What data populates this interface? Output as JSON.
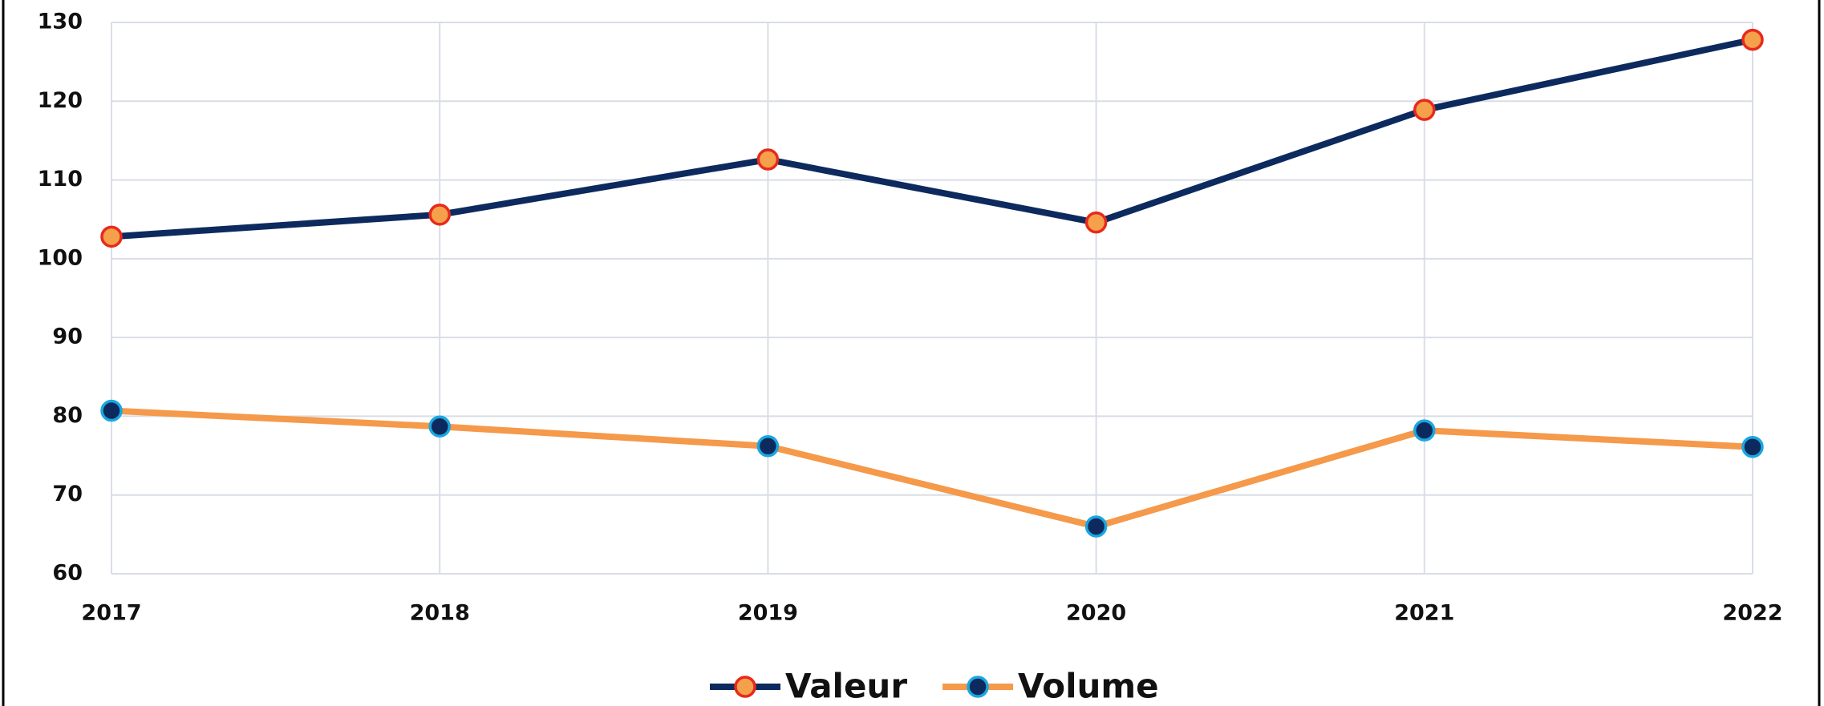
{
  "chart_data": {
    "type": "line",
    "categories": [
      "2017",
      "2018",
      "2019",
      "2020",
      "2021",
      "2022"
    ],
    "series": [
      {
        "name": "Valeur",
        "color": "#0d2a5e",
        "marker_fill": "#f5a04a",
        "marker_edge": "#e8291c",
        "values": [
          102.8,
          105.6,
          112.6,
          104.6,
          118.9,
          127.8
        ]
      },
      {
        "name": "Volume",
        "color": "#f5994a",
        "marker_fill": "#0d2a5e",
        "marker_edge": "#1aa7e0",
        "values": [
          80.7,
          78.7,
          76.2,
          66.0,
          78.2,
          76.1
        ]
      }
    ],
    "ylim": [
      60,
      130
    ],
    "yticks": [
      60,
      70,
      80,
      90,
      100,
      110,
      120,
      130
    ],
    "grid": true,
    "legend": "bottom"
  }
}
